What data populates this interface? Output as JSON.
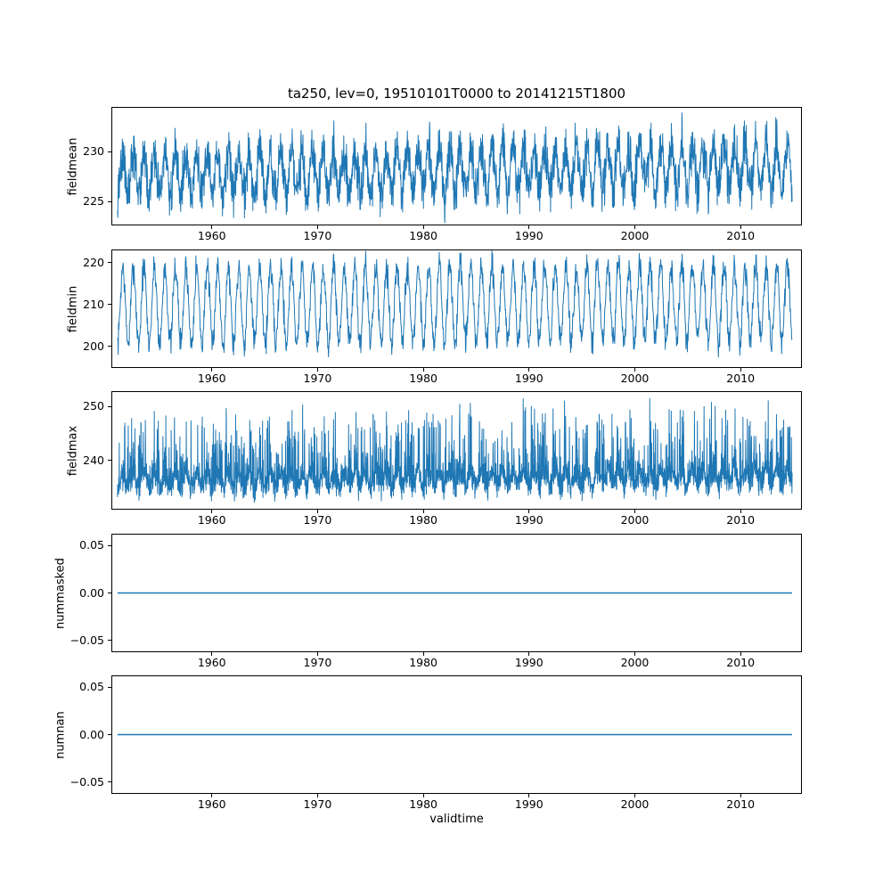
{
  "figure": {
    "title": "ta250, lev=0, 19510101T0000 to 20141215T1800",
    "xlabel": "validtime",
    "line_color": "#1f77b4",
    "background": "#ffffff",
    "x_axis": [
      1950.5,
      2015.8
    ],
    "x_data_range": [
      1951.0,
      2014.96
    ],
    "xticks": [
      {
        "v": 1960,
        "label": "1960"
      },
      {
        "v": 1970,
        "label": "1970"
      },
      {
        "v": 1980,
        "label": "1980"
      },
      {
        "v": 1990,
        "label": "1990"
      },
      {
        "v": 2000,
        "label": "2000"
      },
      {
        "v": 2010,
        "label": "2010"
      }
    ]
  },
  "chart_data": [
    {
      "type": "line",
      "ylabel": "fieldmean",
      "ylim": [
        222.6,
        234.5
      ],
      "yticks": [
        {
          "v": 225,
          "label": "225"
        },
        {
          "v": 230,
          "label": "230"
        }
      ],
      "model": {
        "base": 227.6,
        "amp": 2.2,
        "phase": 0.25,
        "noise": 1.2,
        "trend": 1.0,
        "seed": 42,
        "points_per_year": 40
      }
    },
    {
      "type": "line",
      "ylabel": "fieldmin",
      "ylim": [
        194.8,
        223.2
      ],
      "yticks": [
        {
          "v": 200,
          "label": "200"
        },
        {
          "v": 210,
          "label": "210"
        },
        {
          "v": 220,
          "label": "220"
        }
      ],
      "model": {
        "base": 209.8,
        "amp": 9.3,
        "phase": 0.25,
        "noise": 1.7,
        "trend": 0.5,
        "seed": 7,
        "points_per_year": 30
      }
    },
    {
      "type": "line",
      "ylabel": "fieldmax",
      "ylim": [
        230.8,
        252.9
      ],
      "yticks": [
        {
          "v": 240,
          "label": "240"
        },
        {
          "v": 250,
          "label": "250"
        }
      ],
      "model": {
        "base": 235.8,
        "amp": 1.4,
        "phase": 0.25,
        "noise": 1.1,
        "skew": 13,
        "skew_pow": 9,
        "trend": 0.8,
        "seed": 11,
        "points_per_year": 60
      }
    },
    {
      "type": "line",
      "ylabel": "nummasked",
      "ylim": [
        -0.0625,
        0.0625
      ],
      "yticks": [
        {
          "v": 0.05,
          "label": "0.05"
        },
        {
          "v": 0.0,
          "label": "0.00"
        },
        {
          "v": -0.05,
          "label": "−0.05"
        }
      ],
      "model": {
        "constant": 0,
        "points_per_year": 1
      }
    },
    {
      "type": "line",
      "ylabel": "numnan",
      "ylim": [
        -0.0625,
        0.0625
      ],
      "yticks": [
        {
          "v": 0.05,
          "label": "0.05"
        },
        {
          "v": 0.0,
          "label": "0.00"
        },
        {
          "v": -0.05,
          "label": "−0.05"
        }
      ],
      "model": {
        "constant": 0,
        "points_per_year": 1
      }
    }
  ]
}
